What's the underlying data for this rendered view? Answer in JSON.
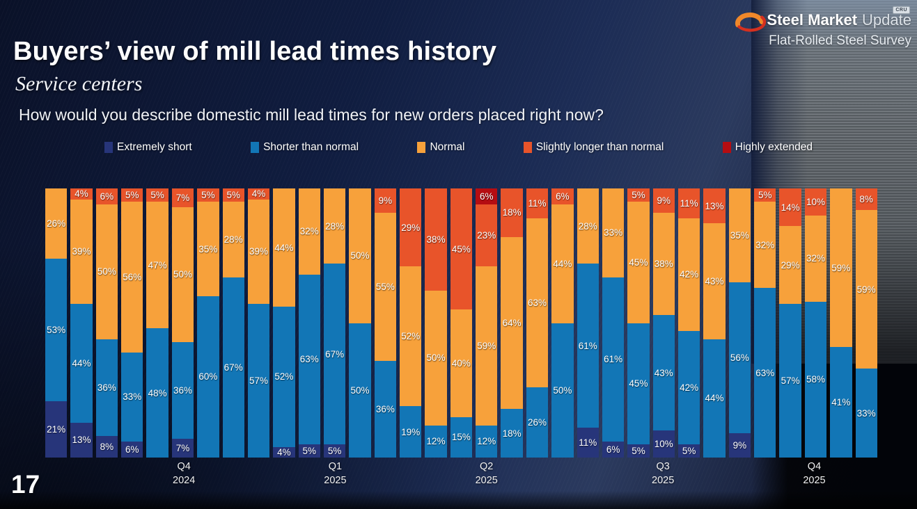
{
  "header": {
    "title": "Buyers’ view of mill lead times history",
    "subtitle": "Service centers",
    "question": "How would you describe domestic mill lead times for new orders placed right now?"
  },
  "logo": {
    "brand_bold": "Steel Market",
    "brand_light": "Update",
    "cru_badge": "CRU",
    "subtitle": "Flat-Rolled Steel Survey"
  },
  "footer": {
    "page_number": "17"
  },
  "colors": {
    "extremely_short": "#27357a",
    "shorter_than_normal": "#1276b6",
    "normal": "#f7a13b",
    "slightly_longer": "#e8542a",
    "highly_extended": "#b50d12",
    "background_navy": "#101d40"
  },
  "chart_data": {
    "type": "bar",
    "stacked": true,
    "stack_total": 100,
    "legend_position": "top",
    "value_suffix": "%",
    "num_bars": 33,
    "series": [
      {
        "name": "Extremely short",
        "color": "#27357a",
        "values": [
          21,
          13,
          8,
          6,
          0,
          7,
          0,
          0,
          0,
          4,
          5,
          5,
          0,
          0,
          0,
          0,
          0,
          0,
          0,
          0,
          0,
          11,
          6,
          5,
          10,
          5,
          0,
          9,
          0,
          0,
          0,
          0,
          0
        ]
      },
      {
        "name": "Shorter than normal",
        "color": "#1276b6",
        "values": [
          53,
          44,
          36,
          33,
          48,
          36,
          60,
          67,
          57,
          52,
          63,
          67,
          50,
          36,
          19,
          12,
          15,
          12,
          18,
          26,
          50,
          61,
          61,
          45,
          43,
          42,
          44,
          56,
          63,
          57,
          58,
          41,
          33
        ]
      },
      {
        "name": "Normal",
        "color": "#f7a13b",
        "values": [
          26,
          39,
          50,
          56,
          47,
          50,
          35,
          28,
          39,
          44,
          32,
          28,
          50,
          55,
          52,
          50,
          40,
          59,
          64,
          63,
          44,
          28,
          33,
          45,
          38,
          42,
          43,
          35,
          32,
          29,
          32,
          59,
          59
        ]
      },
      {
        "name": "Slightly longer than normal",
        "color": "#e8542a",
        "values": [
          0,
          4,
          6,
          5,
          5,
          7,
          5,
          5,
          4,
          0,
          0,
          0,
          0,
          9,
          29,
          38,
          45,
          23,
          18,
          11,
          6,
          0,
          0,
          5,
          9,
          11,
          13,
          0,
          5,
          14,
          10,
          0,
          8
        ]
      },
      {
        "name": "Highly extended",
        "color": "#b50d12",
        "values": [
          0,
          0,
          0,
          0,
          0,
          0,
          0,
          0,
          0,
          0,
          0,
          0,
          0,
          0,
          0,
          0,
          0,
          6,
          0,
          0,
          0,
          0,
          0,
          0,
          0,
          0,
          0,
          0,
          0,
          0,
          0,
          0,
          0
        ]
      }
    ],
    "x_axis": {
      "labels": [
        {
          "quarter": "Q4",
          "year": "2024",
          "bar_index": 5
        },
        {
          "quarter": "Q1",
          "year": "2025",
          "bar_index": 11
        },
        {
          "quarter": "Q2",
          "year": "2025",
          "bar_index": 17
        },
        {
          "quarter": "Q3",
          "year": "2025",
          "bar_index": 24
        },
        {
          "quarter": "Q4",
          "year": "2025",
          "bar_index": 30
        }
      ]
    }
  }
}
